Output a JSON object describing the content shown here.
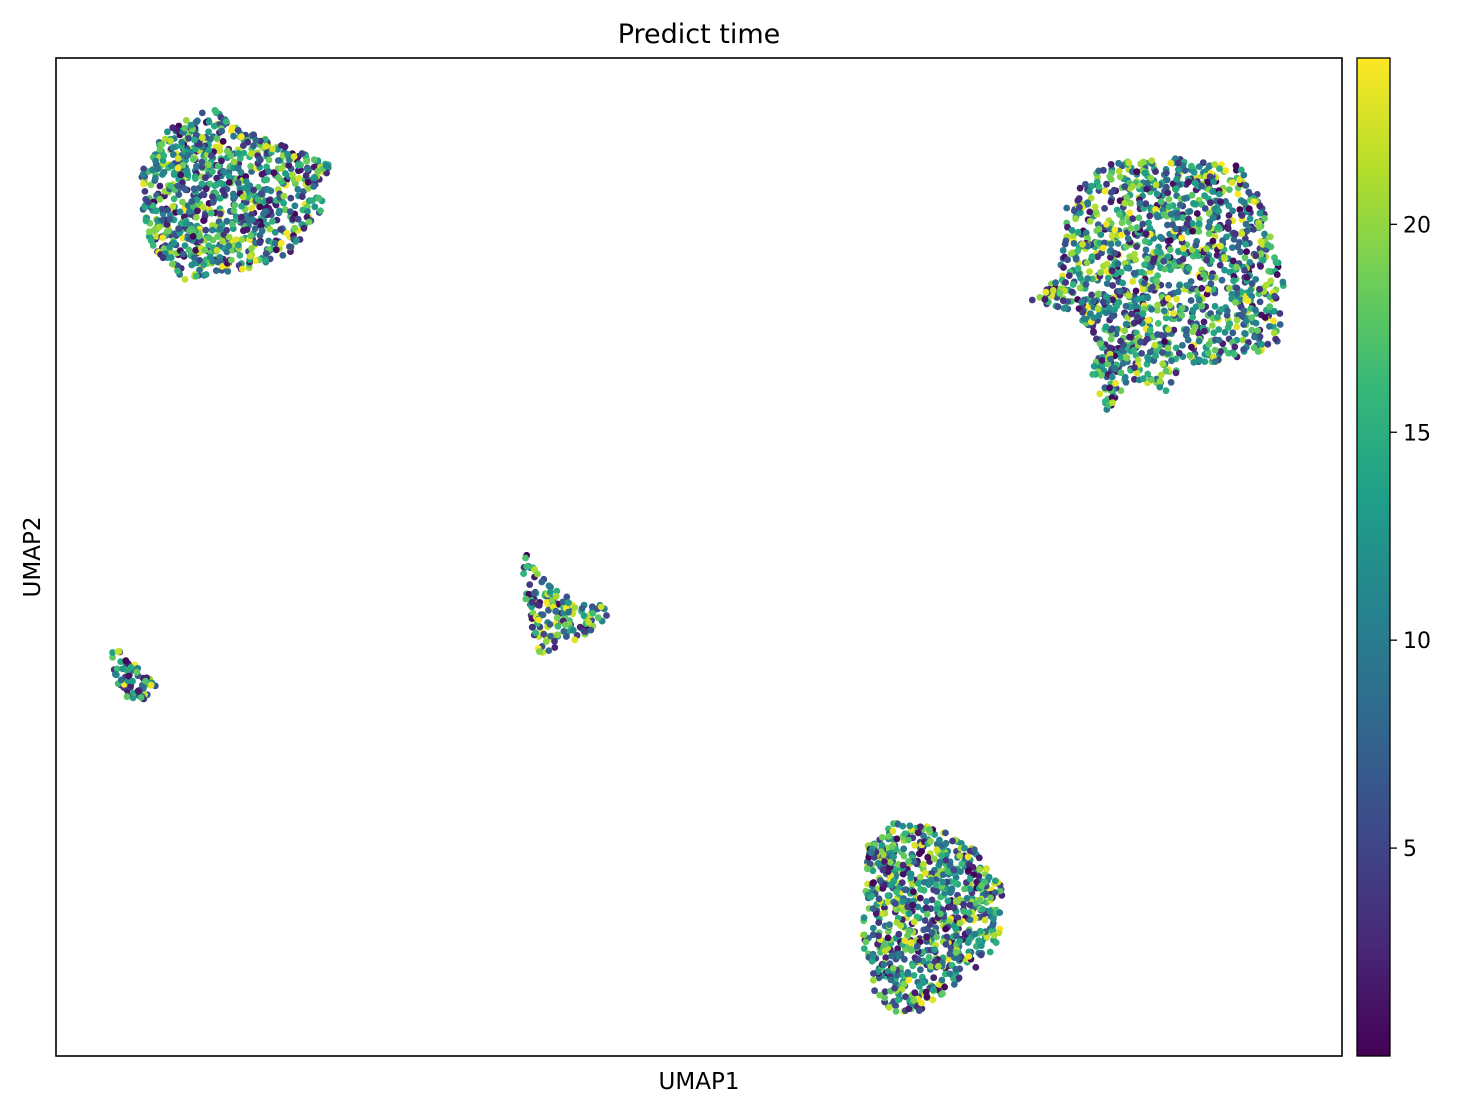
{
  "chart_data": {
    "type": "scatter",
    "title": "Predict time",
    "xlabel": "UMAP1",
    "ylabel": "UMAP2",
    "x_ticks_shown": false,
    "y_ticks_shown": false,
    "grid": false,
    "xlim": [
      0,
      100
    ],
    "ylim": [
      0,
      100
    ],
    "colorbar": {
      "label": "",
      "colormap": "viridis",
      "range": [
        0,
        24
      ],
      "ticks": [
        5,
        10,
        15,
        20
      ],
      "tick_labels": [
        "5",
        "10",
        "15",
        "20"
      ],
      "stops": [
        "#440154",
        "#482878",
        "#3e4989",
        "#31688e",
        "#26828e",
        "#1f9e89",
        "#35b779",
        "#6ece58",
        "#b5de2b",
        "#fde725"
      ]
    },
    "clusters": [
      {
        "name": "",
        "center": [
          13.8,
          84.6
        ],
        "approx_points": 900,
        "time_range": [
          0,
          24
        ]
      },
      {
        "name": "",
        "center": [
          86.8,
          77.8
        ],
        "approx_points": 1400,
        "time_range": [
          0,
          24
        ]
      },
      {
        "name": "",
        "center": [
          40.2,
          44.8
        ],
        "approx_points": 160,
        "time_range": [
          0,
          24
        ]
      },
      {
        "name": "",
        "center": [
          5.8,
          38.0
        ],
        "approx_points": 70,
        "time_range": [
          0,
          24
        ]
      },
      {
        "name": "",
        "center": [
          68.2,
          14.8
        ],
        "approx_points": 850,
        "time_range": [
          0,
          24
        ]
      }
    ]
  }
}
